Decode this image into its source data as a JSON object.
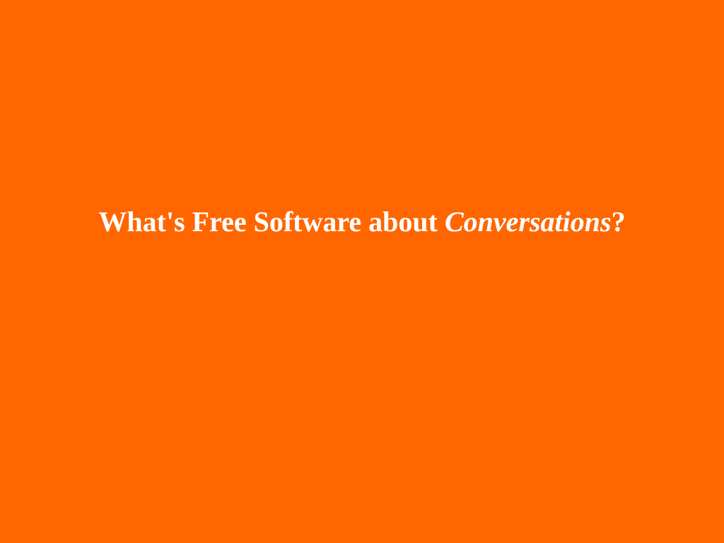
{
  "slide": {
    "background_color": "#ff6600",
    "text_color": "#ffffff",
    "title": {
      "prefix": "What's Free Software about ",
      "emphasis": "Conversations",
      "suffix": "?"
    }
  }
}
